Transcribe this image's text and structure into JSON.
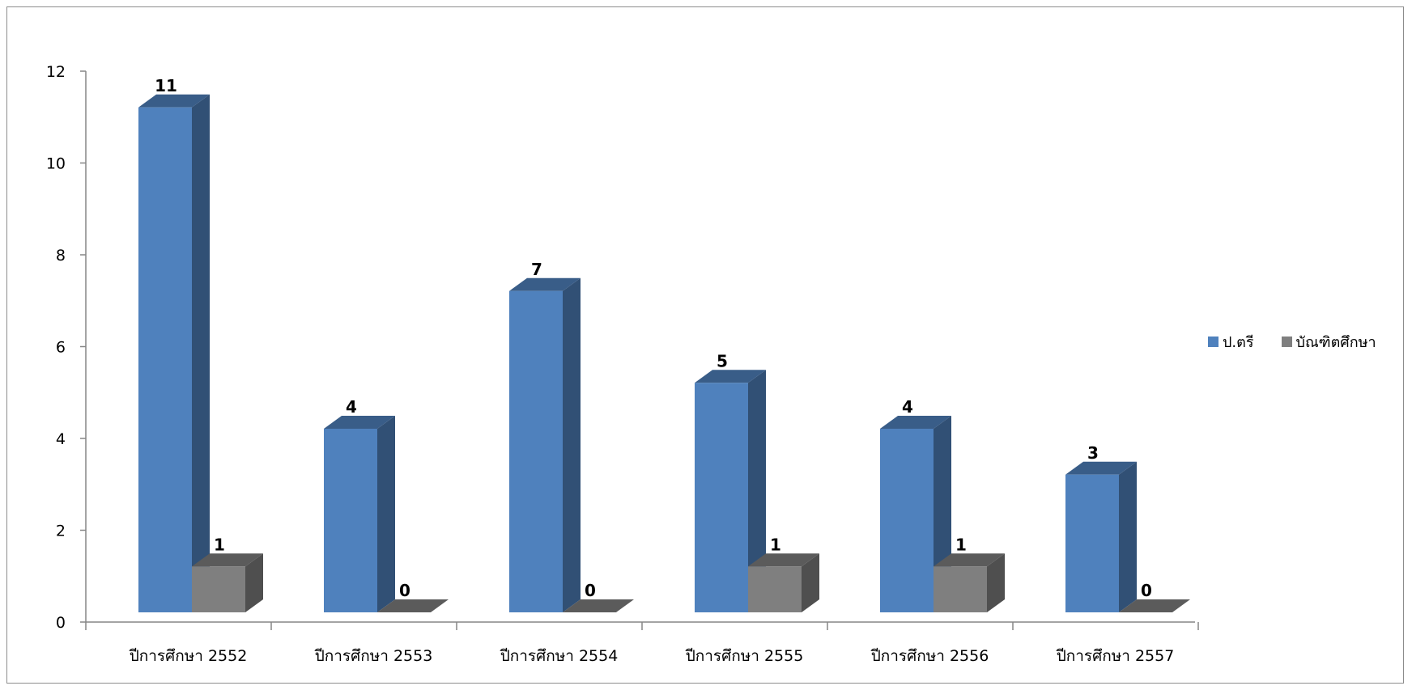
{
  "chart_data": {
    "type": "bar",
    "title": "",
    "xlabel": "",
    "ylabel": "",
    "ylim": [
      0,
      12
    ],
    "yticks": [
      0,
      2,
      4,
      6,
      8,
      10,
      12
    ],
    "grid": false,
    "legend_position": "right",
    "categories": [
      "ปีการศึกษา 2552",
      "ปีการศึกษา 2553",
      "ปีการศึกษา 2554",
      "ปีการศึกษา 2555",
      "ปีการศึกษา 2556",
      "ปีการศึกษา 2557"
    ],
    "series": [
      {
        "name": "ป.ตรี",
        "color": "#4f81bd",
        "values": [
          11,
          4,
          7,
          5,
          4,
          3
        ]
      },
      {
        "name": "บัณฑิตศึกษา",
        "color": "#7f7f7f",
        "values": [
          1,
          0,
          0,
          1,
          1,
          0
        ]
      }
    ]
  }
}
